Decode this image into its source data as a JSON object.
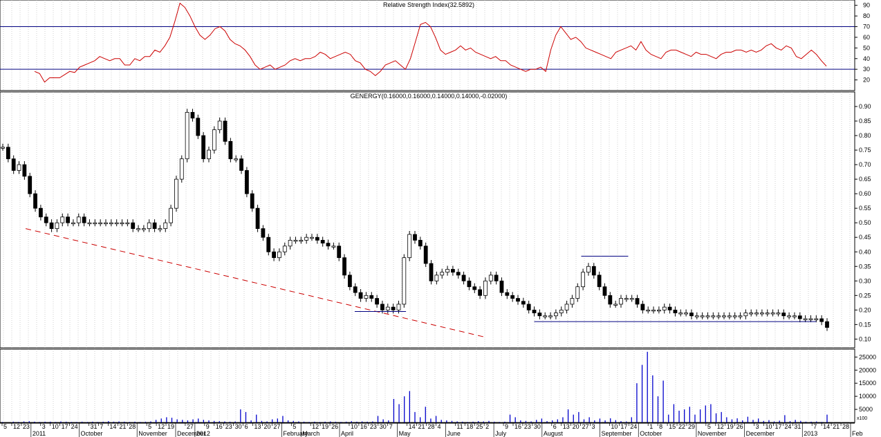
{
  "rsi_panel": {
    "title": "Relative Strength Index(32.5892)",
    "ylim": [
      10,
      95
    ],
    "ticks": [
      20,
      30,
      40,
      50,
      60,
      70,
      80,
      90
    ],
    "overbought": 70,
    "oversold": 30,
    "line_color": "#cc0000",
    "level_color": "#000080"
  },
  "price_panel": {
    "title": "GENERGY(0.16000,0.16000,0.14000,0.14000,-0.02000)",
    "ylim": [
      0.07,
      0.95
    ],
    "ticks": [
      "0.10",
      "0.15",
      "0.20",
      "0.25",
      "0.30",
      "0.35",
      "0.40",
      "0.45",
      "0.50",
      "0.55",
      "0.60",
      "0.65",
      "0.70",
      "0.75",
      "0.80",
      "0.85",
      "0.90"
    ],
    "bar_color": "#000000",
    "trendline_color": "#cc0000",
    "support_color": "#000080",
    "downtrend_line": {
      "from": {
        "x": 0.03,
        "y": 0.48
      },
      "to": {
        "x": 0.57,
        "y": 0.105
      }
    },
    "support_lines": [
      {
        "from": 0.415,
        "to": 0.475,
        "y": 0.195
      },
      {
        "from": 0.625,
        "to": 0.955,
        "y": 0.16
      }
    ],
    "resistance_lines": [
      {
        "from": 0.68,
        "to": 0.735,
        "y": 0.385
      }
    ]
  },
  "volume_panel": {
    "ylim": [
      0,
      28000
    ],
    "ticks": [
      "5000",
      "10000",
      "15000",
      "20000",
      "25000"
    ],
    "unit_label": "x100",
    "bar_color": "#0000cc"
  },
  "x_axis": {
    "labels": [
      "5",
      "12",
      "23",
      "2011",
      "3",
      "10",
      "17",
      "24",
      "October",
      "31",
      "7",
      "14",
      "21",
      "28",
      "November",
      "5",
      "12",
      "19",
      "December",
      "27",
      "2012",
      "9",
      "16",
      "23",
      "30",
      "6",
      "13",
      "20",
      "27",
      "February",
      "5",
      "March",
      "12",
      "19",
      "26",
      "April",
      "10",
      "16",
      "23",
      "30",
      "7",
      "May",
      "14",
      "21",
      "28",
      "4",
      "June",
      "11",
      "18",
      "25",
      "2",
      "July",
      "9",
      "16",
      "23",
      "30",
      "August",
      "6",
      "13",
      "20",
      "27",
      "3",
      "September",
      "10",
      "17",
      "24",
      "October",
      "1",
      "8",
      "15",
      "22",
      "29",
      "November",
      "5",
      "12",
      "19",
      "26",
      "December",
      "3",
      "10",
      "17",
      "24",
      "31",
      "2013",
      "7",
      "14",
      "21",
      "28",
      "Feb"
    ]
  },
  "chart_data": [
    {
      "type": "line",
      "title": "Relative Strength Index(32.5892)",
      "series": [
        {
          "values": [
            28,
            26,
            18,
            22,
            22,
            22,
            25,
            28,
            27,
            32,
            34,
            36,
            38,
            42,
            40,
            38,
            40,
            40,
            34,
            34,
            40,
            38,
            42,
            42,
            48,
            46,
            52,
            60,
            75,
            92,
            88,
            80,
            70,
            62,
            58,
            62,
            68,
            70,
            66,
            58,
            54,
            52,
            48,
            42,
            34,
            30,
            32,
            34,
            30,
            32,
            34,
            38,
            40,
            38,
            40,
            40,
            42,
            46,
            44,
            40,
            42,
            44,
            46,
            44,
            38,
            36,
            30,
            28,
            24,
            28,
            34,
            36,
            38,
            34,
            30,
            40,
            56,
            72,
            74,
            70,
            60,
            48,
            44,
            46,
            48,
            52,
            48,
            50,
            46,
            44,
            42,
            40,
            42,
            38,
            38,
            34,
            32,
            30,
            28,
            30,
            30,
            32,
            28,
            48,
            62,
            70,
            64,
            58,
            60,
            56,
            50,
            48,
            46,
            44,
            42,
            40,
            46,
            48,
            50,
            52,
            48,
            56,
            48,
            44,
            42,
            40,
            46,
            48,
            48,
            46,
            44,
            42,
            46,
            44,
            44,
            42,
            40,
            44,
            46,
            46,
            48,
            48,
            46,
            48,
            46,
            48,
            52,
            54,
            50,
            48,
            52,
            50,
            42,
            40,
            44,
            48,
            44,
            38,
            33
          ]
        }
      ],
      "ylim": [
        10,
        95
      ]
    },
    {
      "type": "bar",
      "title": "GENERGY(0.16000,0.16000,0.14000,0.14000,-0.02000)",
      "series": [
        {
          "values": [
            0.76,
            0.72,
            0.68,
            0.7,
            0.66,
            0.6,
            0.55,
            0.52,
            0.5,
            0.48,
            0.5,
            0.52,
            0.5,
            0.5,
            0.52,
            0.5,
            0.5,
            0.5,
            0.5,
            0.5,
            0.5,
            0.5,
            0.5,
            0.5,
            0.48,
            0.48,
            0.48,
            0.5,
            0.48,
            0.48,
            0.5,
            0.55,
            0.65,
            0.72,
            0.88,
            0.86,
            0.8,
            0.72,
            0.75,
            0.82,
            0.85,
            0.78,
            0.72,
            0.72,
            0.68,
            0.6,
            0.55,
            0.48,
            0.45,
            0.4,
            0.38,
            0.4,
            0.42,
            0.44,
            0.44,
            0.44,
            0.45,
            0.45,
            0.44,
            0.43,
            0.42,
            0.42,
            0.38,
            0.32,
            0.28,
            0.26,
            0.24,
            0.25,
            0.24,
            0.22,
            0.2,
            0.21,
            0.2,
            0.22,
            0.38,
            0.46,
            0.44,
            0.42,
            0.36,
            0.3,
            0.32,
            0.33,
            0.34,
            0.33,
            0.32,
            0.3,
            0.28,
            0.27,
            0.25,
            0.3,
            0.32,
            0.3,
            0.26,
            0.25,
            0.24,
            0.23,
            0.22,
            0.2,
            0.19,
            0.18,
            0.18,
            0.18,
            0.19,
            0.2,
            0.22,
            0.24,
            0.28,
            0.33,
            0.35,
            0.32,
            0.28,
            0.25,
            0.22,
            0.22,
            0.24,
            0.24,
            0.24,
            0.22,
            0.2,
            0.2,
            0.2,
            0.2,
            0.21,
            0.2,
            0.19,
            0.19,
            0.19,
            0.18,
            0.18,
            0.18,
            0.18,
            0.18,
            0.18,
            0.18,
            0.18,
            0.18,
            0.18,
            0.19,
            0.19,
            0.19,
            0.19,
            0.19,
            0.19,
            0.19,
            0.18,
            0.18,
            0.18,
            0.17,
            0.17,
            0.17,
            0.17,
            0.16,
            0.14
          ]
        }
      ],
      "ylim": [
        0.07,
        0.95
      ]
    },
    {
      "type": "bar",
      "series": [
        {
          "values": [
            200,
            0,
            300,
            200,
            400,
            500,
            300,
            200,
            300,
            300,
            200,
            400,
            300,
            200,
            200,
            300,
            200,
            300,
            200,
            300,
            500,
            300,
            400,
            300,
            200,
            300,
            200,
            300,
            400,
            1000,
            1500,
            2000,
            1800,
            1200,
            1000,
            800,
            1200,
            1500,
            1000,
            800,
            600,
            500,
            400,
            300,
            400,
            5000,
            4000,
            800,
            3000,
            600,
            400,
            1200,
            1500,
            2500,
            800,
            600,
            400,
            300,
            200,
            300,
            200,
            300,
            400,
            300,
            200,
            300,
            500,
            300,
            400,
            300,
            400,
            2500,
            1200,
            800,
            9000,
            7000,
            10000,
            12000,
            4000,
            2000,
            6000,
            1500,
            2500,
            1000,
            800,
            600,
            400,
            300,
            200,
            300,
            500,
            400,
            600,
            300,
            200,
            300,
            3000,
            2000,
            800,
            600,
            400,
            1000,
            1500,
            500,
            800,
            1200,
            2000,
            5000,
            3000,
            4000,
            1200,
            2000,
            800,
            1500,
            800,
            1600,
            900,
            500,
            400,
            2000,
            15000,
            22000,
            27000,
            18000,
            10000,
            16000,
            3000,
            7000,
            4500,
            5000,
            6000,
            3000,
            5000,
            6500,
            7000,
            3500,
            4000,
            2000,
            1200,
            1600,
            800,
            2200,
            1000,
            1500,
            600,
            900,
            400,
            700,
            2800,
            500,
            1000,
            600,
            300,
            300,
            400,
            200,
            3000
          ]
        }
      ],
      "ylim": [
        0,
        28000
      ]
    }
  ]
}
